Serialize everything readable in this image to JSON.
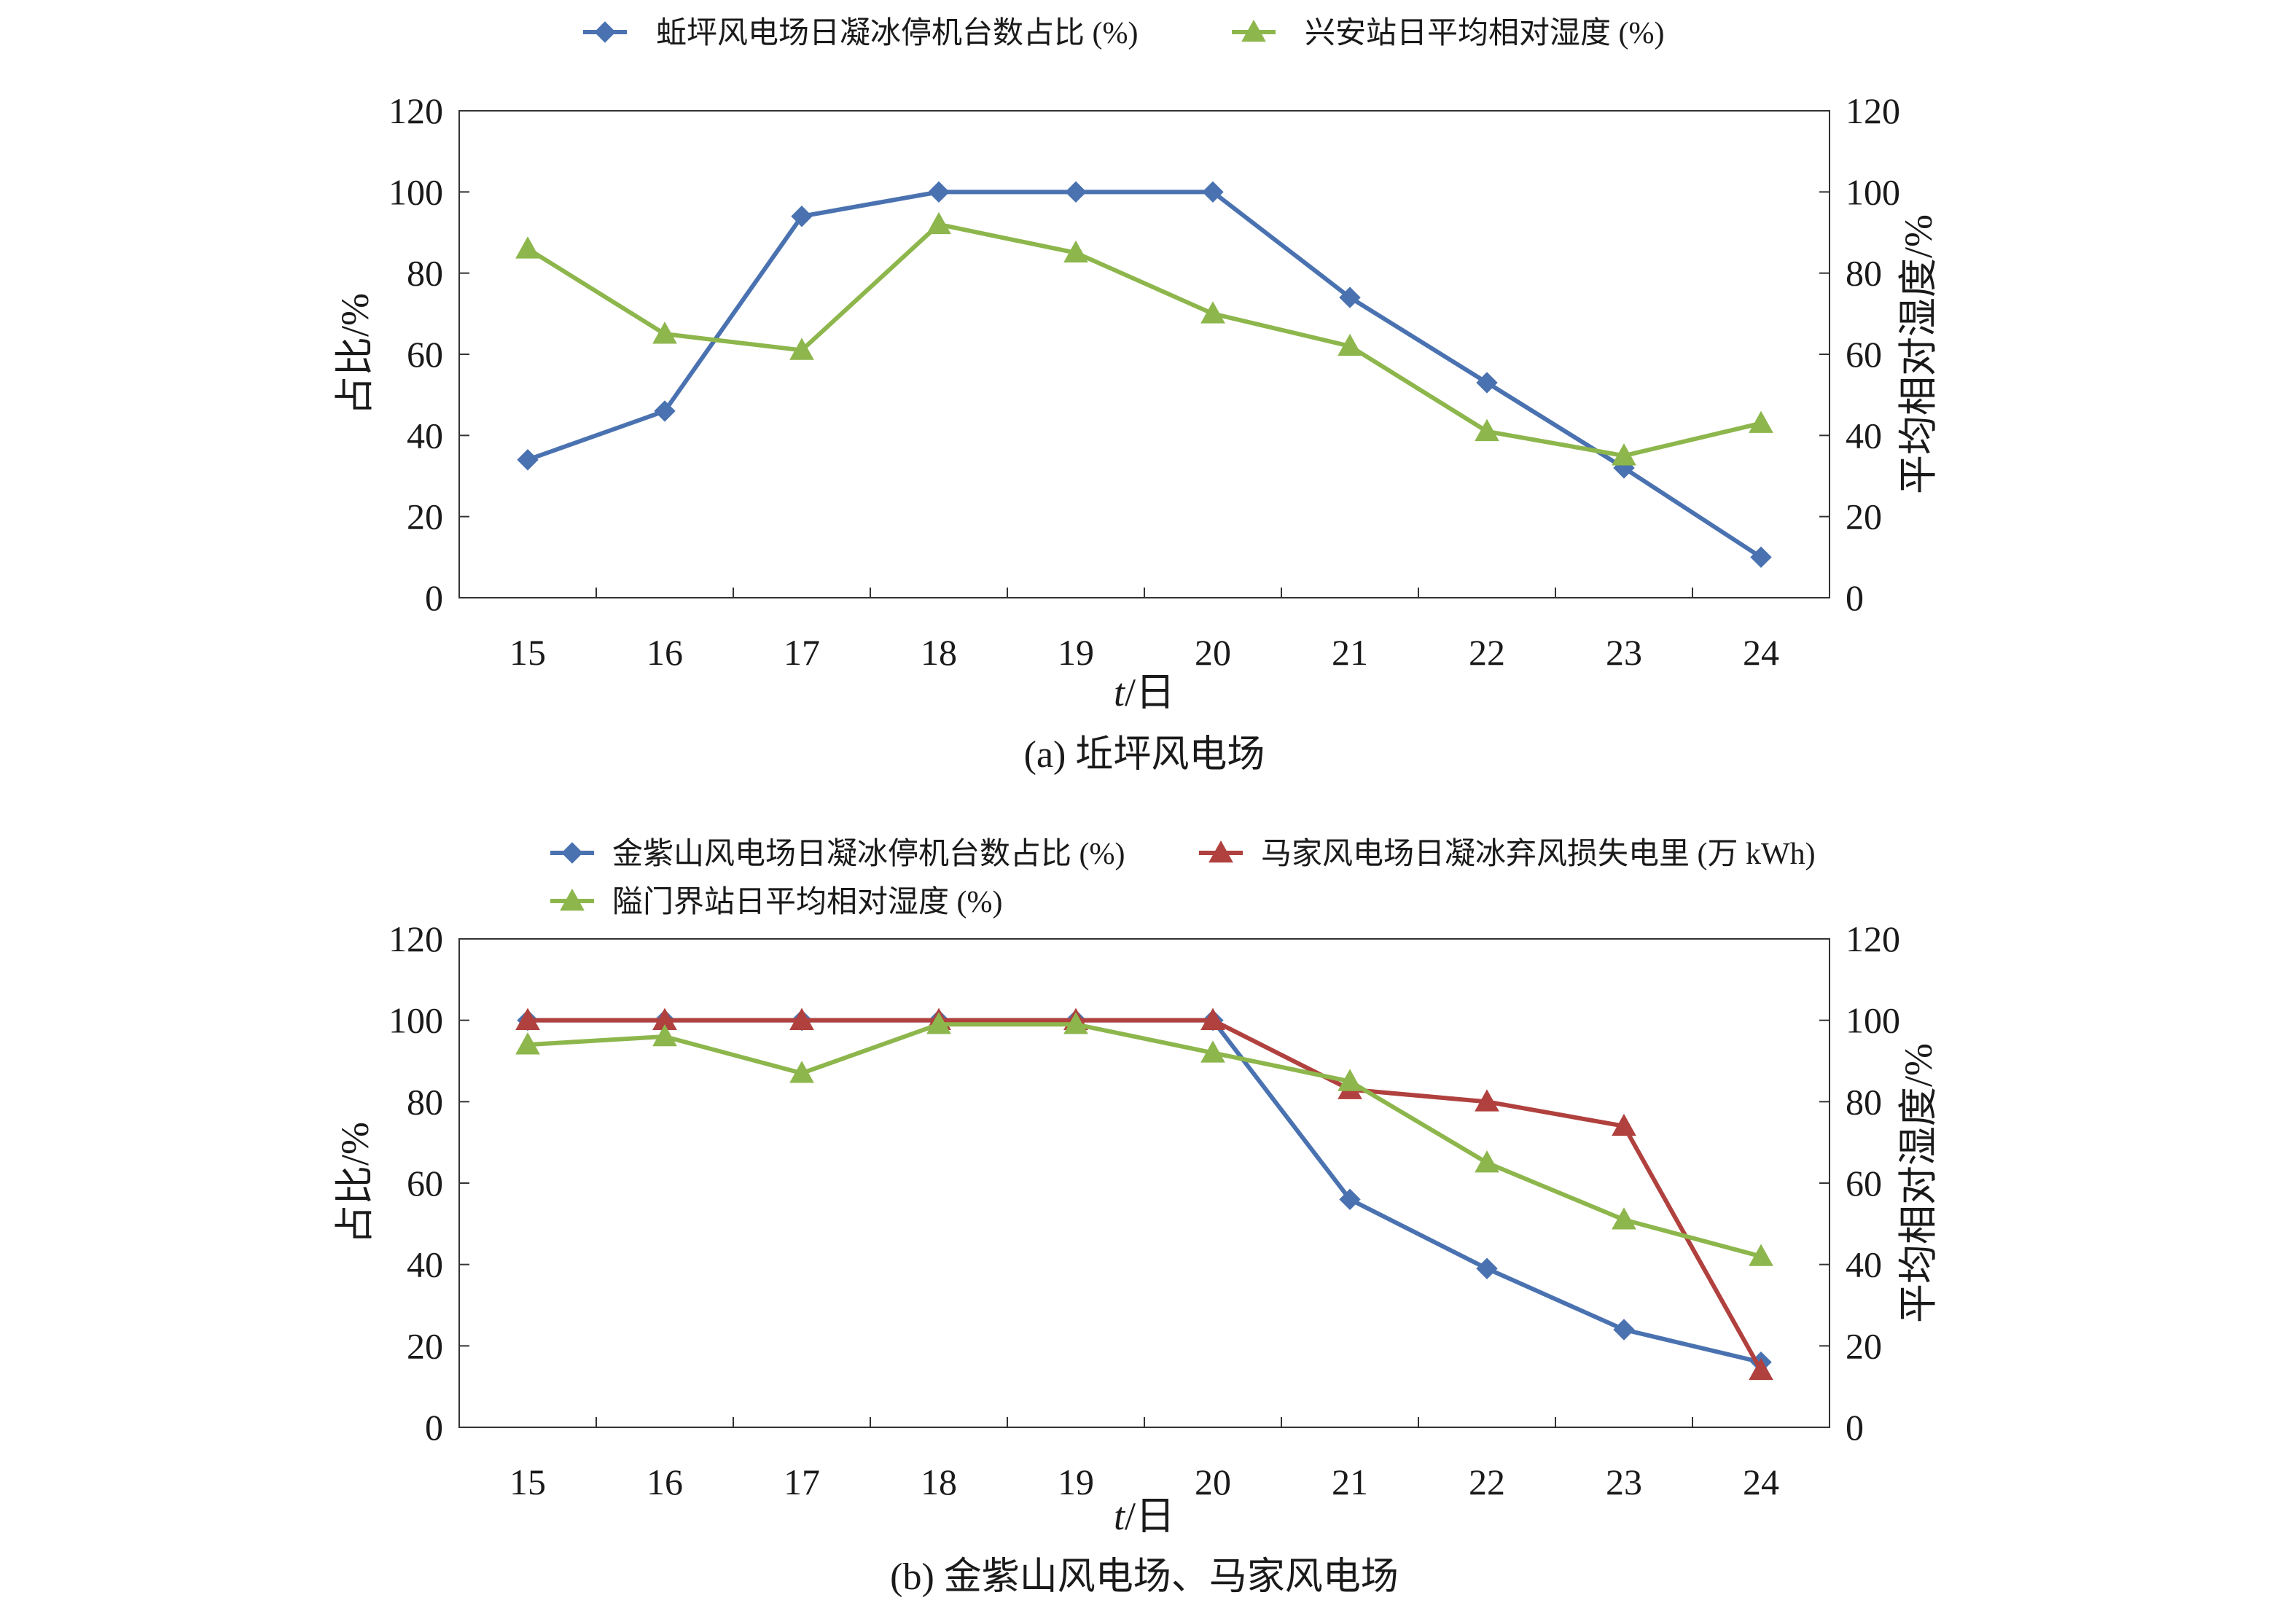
{
  "chart_data": [
    {
      "type": "line",
      "caption": "(a) 坵坪风电场",
      "x": [
        15,
        16,
        17,
        18,
        19,
        20,
        21,
        22,
        23,
        24
      ],
      "xlabel": "t/日",
      "xlabel_italic": "t",
      "xlabel_rest": "/日",
      "ylabel_left": "占比/%",
      "ylabel_right": "平均相对湿度/%",
      "ylim": [
        0,
        120
      ],
      "y_ticks": [
        0,
        20,
        40,
        60,
        80,
        100,
        120
      ],
      "grid": false,
      "legend_position": "top",
      "series": [
        {
          "name": "蚯坪风电场日凝冰停机台数占比 (%)",
          "color": "#4a72b0",
          "marker": "diamond",
          "values": [
            34,
            46,
            94,
            100,
            100,
            100,
            74,
            53,
            32,
            10
          ]
        },
        {
          "name": "兴安站日平均相对湿度 (%)",
          "color": "#8db64c",
          "marker": "triangle",
          "values": [
            86,
            65,
            61,
            92,
            85,
            70,
            62,
            41,
            35,
            43
          ]
        }
      ]
    },
    {
      "type": "line",
      "caption": "(b) 金紫山风电场、马家风电场",
      "x": [
        15,
        16,
        17,
        18,
        19,
        20,
        21,
        22,
        23,
        24
      ],
      "xlabel": "t/日",
      "xlabel_italic": "t",
      "xlabel_rest": "/日",
      "ylabel_left": "占比/%",
      "ylabel_right": "平均相对湿度/%",
      "ylim": [
        0,
        120
      ],
      "y_ticks": [
        0,
        20,
        40,
        60,
        80,
        100,
        120
      ],
      "grid": false,
      "legend_position": "top",
      "series": [
        {
          "name": "金紫山风电场日凝冰停机台数占比 (%)",
          "color": "#4a72b0",
          "marker": "diamond",
          "values": [
            100,
            100,
            100,
            100,
            100,
            100,
            56,
            39,
            24,
            16
          ]
        },
        {
          "name": "马家风电场日凝冰弃风损失电里 (万 kWh)",
          "color": "#b0413e",
          "marker": "triangle",
          "values": [
            100,
            100,
            100,
            100,
            100,
            100,
            83,
            80,
            74,
            14
          ]
        },
        {
          "name": "隘门界站日平均相对湿度 (%)",
          "color": "#8db64c",
          "marker": "triangle",
          "values": [
            94,
            96,
            87,
            99,
            99,
            92,
            85,
            65,
            51,
            42
          ]
        }
      ]
    }
  ]
}
